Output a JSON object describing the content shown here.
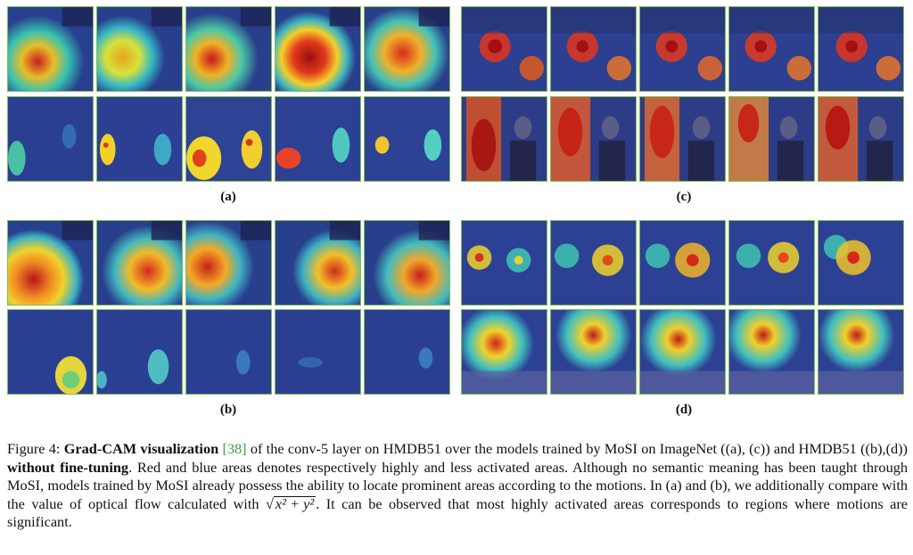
{
  "figure": {
    "panels": [
      {
        "id": "a",
        "label": "(a)"
      },
      {
        "id": "b",
        "label": "(b)"
      },
      {
        "id": "c",
        "label": "(c)"
      },
      {
        "id": "d",
        "label": "(d)"
      }
    ],
    "caption": {
      "prefix": "Figure 4: ",
      "bold1": "Grad-CAM visualization",
      "ref": "[38]",
      "text1": " of the conv-5 layer on HMDB51 over the models trained by MoSI on ImageNet ((a), (c)) and HMDB51 ((b),(d)) ",
      "bold2": "without fine-tuning",
      "text2": ". Red and blue areas denotes respectively highly and less activated areas. Although no semantic meaning has been taught through MoSI, models trained by MoSI already possess the ability to locate prominent areas according to the motions. In (a) and (b), we additionally compare with the value of optical flow calculated with ",
      "math_prefix": "√",
      "math": "x² + y²",
      "text3": ". It can be observed that most highly activated areas corresponds to regions where motions are significant."
    }
  }
}
